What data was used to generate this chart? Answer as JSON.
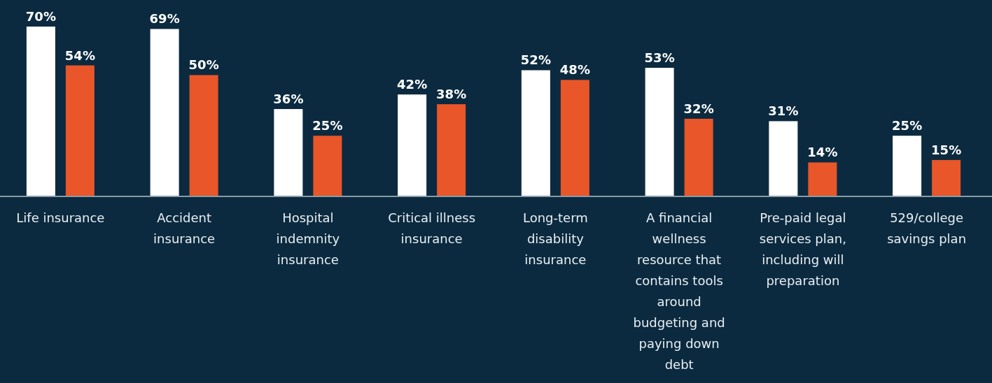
{
  "chart_data": {
    "type": "bar",
    "categories": [
      "Life insurance",
      "Accident insurance",
      "Hospital indemnity insurance",
      "Critical illness insurance",
      "Long-term disability insurance",
      "A financial wellness resource that contains tools around budgeting and paying down debt",
      "Pre-paid legal services plan, including will preparation",
      "529/college savings plan"
    ],
    "series": [
      {
        "color": "#ffffff",
        "values": [
          70,
          69,
          36,
          42,
          52,
          53,
          31,
          25
        ],
        "value_labels": [
          "70%",
          "69%",
          "36%",
          "42%",
          "52%",
          "53%",
          "31%",
          "25%"
        ]
      },
      {
        "color": "#e8562a",
        "values": [
          54,
          50,
          25,
          38,
          48,
          32,
          14,
          15
        ],
        "value_labels": [
          "54%",
          "50%",
          "25%",
          "38%",
          "48%",
          "32%",
          "14%",
          "15%"
        ]
      }
    ]
  }
}
